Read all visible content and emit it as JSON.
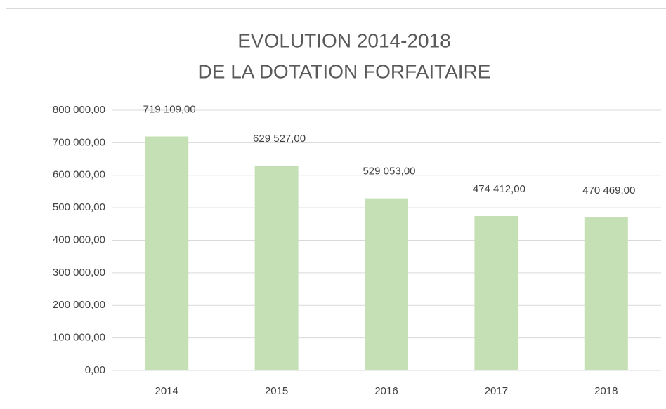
{
  "chart_data": {
    "type": "bar",
    "title": "EVOLUTION 2014-2018",
    "subtitle": "DE LA DOTATION FORFAITAIRE",
    "categories": [
      "2014",
      "2015",
      "2016",
      "2017",
      "2018"
    ],
    "values": [
      719109,
      629527,
      529053,
      474412,
      470469
    ],
    "value_labels": [
      "719 109,00",
      "629 527,00",
      "529 053,00",
      "474 412,00",
      "470 469,00"
    ],
    "color": "#c5e0b4",
    "ylim": [
      0,
      800000
    ],
    "yticks": [
      {
        "value": 0,
        "label": "0,00"
      },
      {
        "value": 100000,
        "label": "100 000,00"
      },
      {
        "value": 200000,
        "label": "200 000,00"
      },
      {
        "value": 300000,
        "label": "300 000,00"
      },
      {
        "value": 400000,
        "label": "400 000,00"
      },
      {
        "value": 500000,
        "label": "500 000,00"
      },
      {
        "value": 600000,
        "label": "600 000,00"
      },
      {
        "value": 700000,
        "label": "700 000,00"
      },
      {
        "value": 800000,
        "label": "800 000,00"
      }
    ],
    "grid": true
  }
}
